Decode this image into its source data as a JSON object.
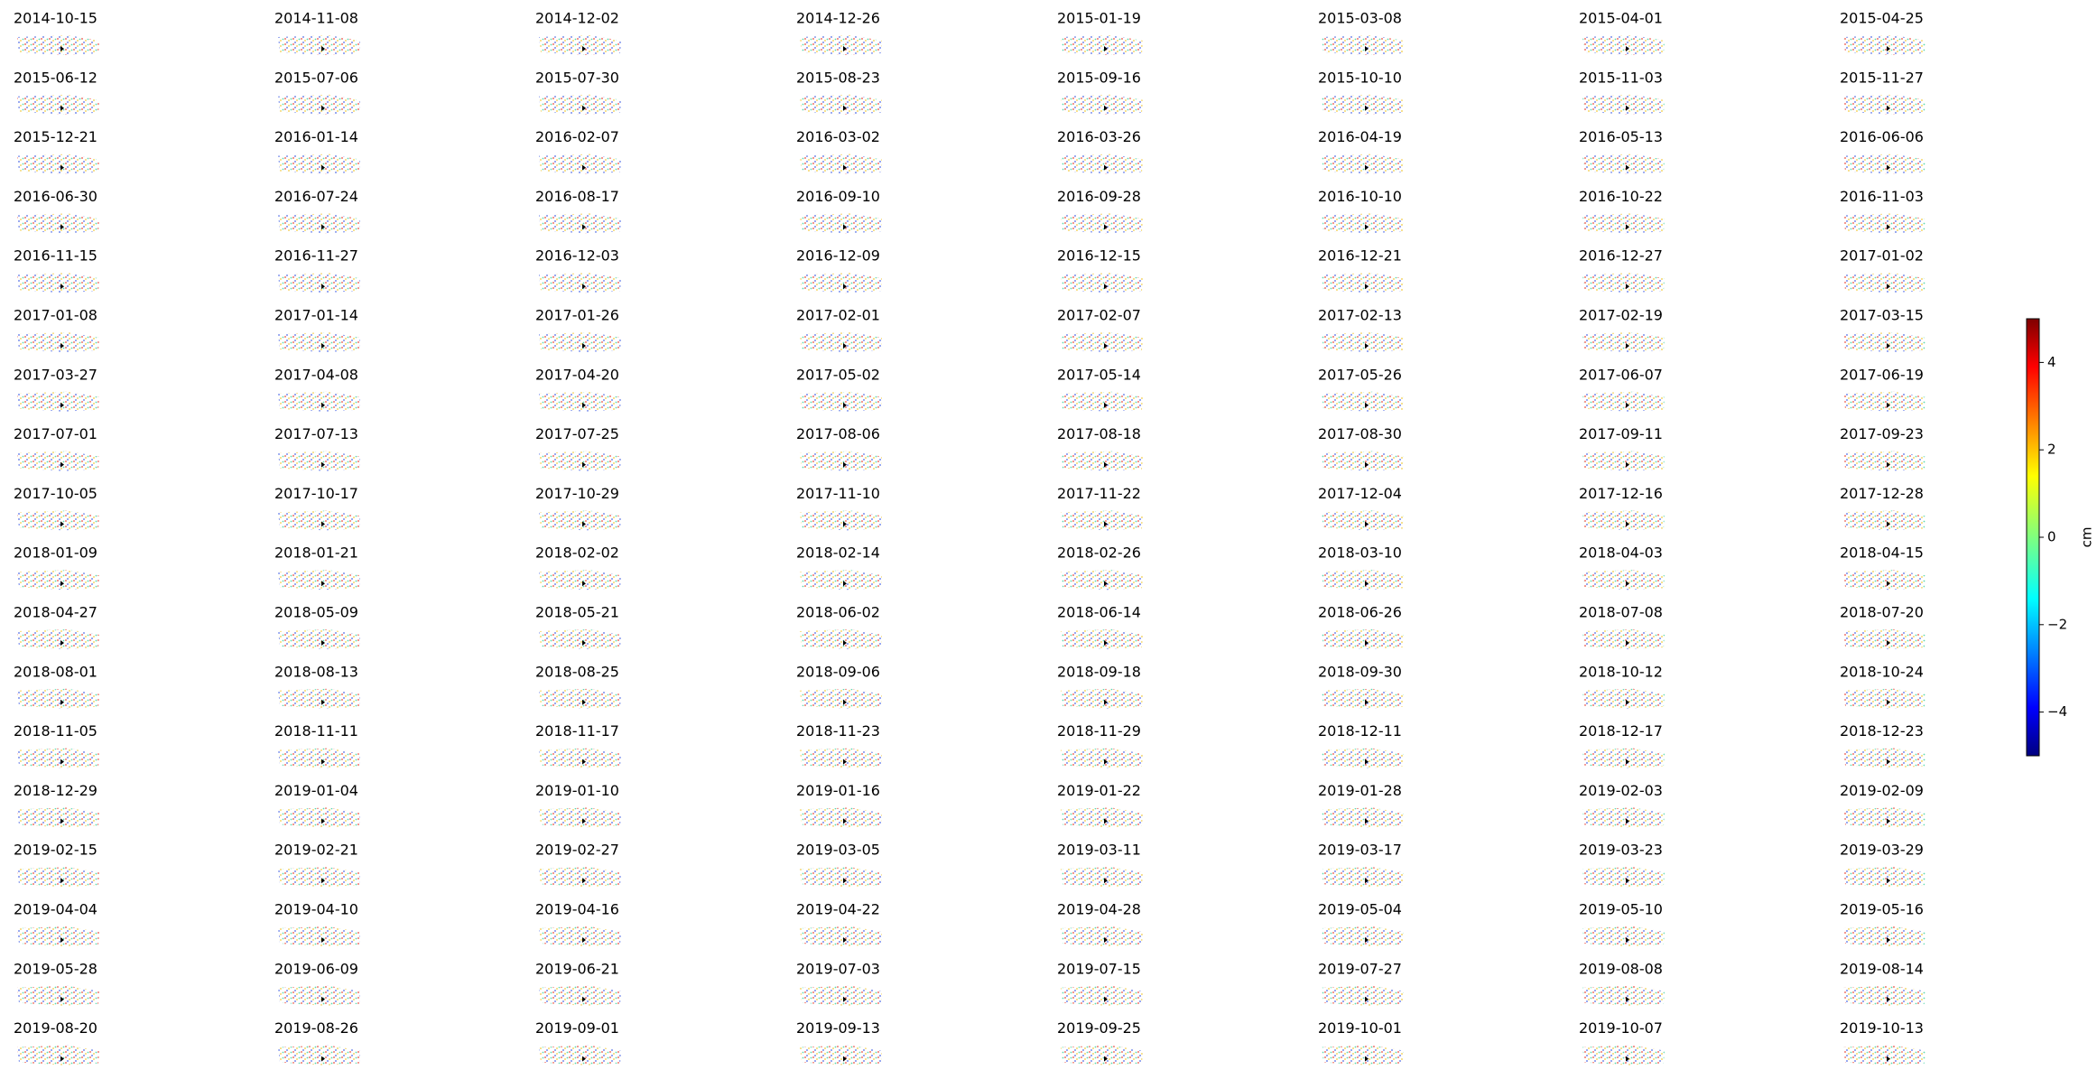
{
  "chart_data": {
    "type": "small-multiples",
    "panels": [
      "2014-10-15",
      "2014-11-08",
      "2014-12-02",
      "2014-12-26",
      "2015-01-19",
      "2015-03-08",
      "2015-04-01",
      "2015-04-25",
      "2015-06-12",
      "2015-07-06",
      "2015-07-30",
      "2015-08-23",
      "2015-09-16",
      "2015-10-10",
      "2015-11-03",
      "2015-11-27",
      "2015-12-21",
      "2016-01-14",
      "2016-02-07",
      "2016-03-02",
      "2016-03-26",
      "2016-04-19",
      "2016-05-13",
      "2016-06-06",
      "2016-06-30",
      "2016-07-24",
      "2016-08-17",
      "2016-09-10",
      "2016-09-28",
      "2016-10-10",
      "2016-10-22",
      "2016-11-03",
      "2016-11-15",
      "2016-11-27",
      "2016-12-03",
      "2016-12-09",
      "2016-12-15",
      "2016-12-21",
      "2016-12-27",
      "2017-01-02",
      "2017-01-08",
      "2017-01-14",
      "2017-01-26",
      "2017-02-01",
      "2017-02-07",
      "2017-02-13",
      "2017-02-19",
      "2017-03-15",
      "2017-03-27",
      "2017-04-08",
      "2017-04-20",
      "2017-05-02",
      "2017-05-14",
      "2017-05-26",
      "2017-06-07",
      "2017-06-19",
      "2017-07-01",
      "2017-07-13",
      "2017-07-25",
      "2017-08-06",
      "2017-08-18",
      "2017-08-30",
      "2017-09-11",
      "2017-09-23",
      "2017-10-05",
      "2017-10-17",
      "2017-10-29",
      "2017-11-10",
      "2017-11-22",
      "2017-12-04",
      "2017-12-16",
      "2017-12-28",
      "2018-01-09",
      "2018-01-21",
      "2018-02-02",
      "2018-02-14",
      "2018-02-26",
      "2018-03-10",
      "2018-04-03",
      "2018-04-15",
      "2018-04-27",
      "2018-05-09",
      "2018-05-21",
      "2018-06-02",
      "2018-06-14",
      "2018-06-26",
      "2018-07-08",
      "2018-07-20",
      "2018-08-01",
      "2018-08-13",
      "2018-08-25",
      "2018-09-06",
      "2018-09-18",
      "2018-09-30",
      "2018-10-12",
      "2018-10-24",
      "2018-11-05",
      "2018-11-11",
      "2018-11-17",
      "2018-11-23",
      "2018-11-29",
      "2018-12-11",
      "2018-12-17",
      "2018-12-23",
      "2018-12-29",
      "2019-01-04",
      "2019-01-10",
      "2019-01-16",
      "2019-01-22",
      "2019-01-28",
      "2019-02-03",
      "2019-02-09",
      "2019-02-15",
      "2019-02-21",
      "2019-02-27",
      "2019-03-05",
      "2019-03-11",
      "2019-03-17",
      "2019-03-23",
      "2019-03-29",
      "2019-04-04",
      "2019-04-10",
      "2019-04-16",
      "2019-04-22",
      "2019-04-28",
      "2019-05-04",
      "2019-05-10",
      "2019-05-16",
      "2019-05-28",
      "2019-06-09",
      "2019-06-21",
      "2019-07-03",
      "2019-07-15",
      "2019-07-27",
      "2019-08-08",
      "2019-08-14",
      "2019-08-20",
      "2019-08-26",
      "2019-09-01",
      "2019-09-13",
      "2019-09-25",
      "2019-10-01",
      "2019-10-07",
      "2019-10-13"
    ],
    "colorbar": {
      "label": "cm",
      "colormap": "jet",
      "ylim": [
        -5,
        5
      ],
      "yticks": [
        {
          "value": -4,
          "label": "−4"
        },
        {
          "value": -2,
          "label": "−2"
        },
        0,
        2,
        4
      ]
    }
  }
}
